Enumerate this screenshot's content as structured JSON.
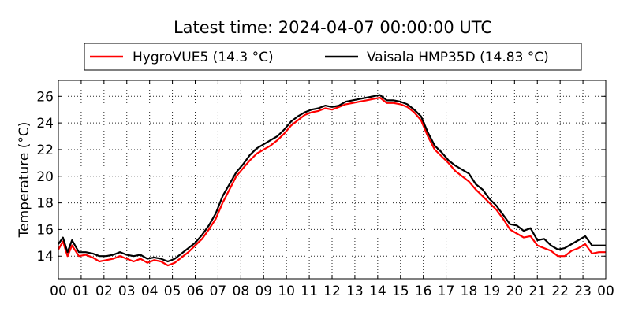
{
  "chart_data": {
    "type": "line",
    "title": "Latest time: 2024-04-07 00:00:00 UTC",
    "xlabel": "",
    "ylabel": "Temperature (°C)",
    "xlim": [
      0,
      24
    ],
    "ylim": [
      12.3,
      27.2
    ],
    "x_tick_labels": [
      "00",
      "01",
      "02",
      "03",
      "04",
      "05",
      "06",
      "07",
      "08",
      "09",
      "10",
      "11",
      "12",
      "13",
      "14",
      "15",
      "16",
      "17",
      "18",
      "19",
      "20",
      "21",
      "22",
      "23",
      "00"
    ],
    "y_ticks": [
      14,
      16,
      18,
      20,
      22,
      24,
      26
    ],
    "grid": true,
    "legend_position": "top",
    "series": [
      {
        "name": "HygroVUE5 (14.3 °C)",
        "color": "#ff0000",
        "x": [
          0.0,
          0.2,
          0.4,
          0.6,
          0.9,
          1.2,
          1.5,
          1.8,
          2.1,
          2.4,
          2.7,
          3.0,
          3.3,
          3.6,
          3.9,
          4.2,
          4.5,
          4.8,
          5.1,
          5.4,
          5.7,
          6.0,
          6.3,
          6.6,
          6.9,
          7.2,
          7.5,
          7.8,
          8.1,
          8.4,
          8.7,
          9.0,
          9.3,
          9.6,
          9.9,
          10.2,
          10.5,
          10.8,
          11.1,
          11.4,
          11.7,
          12.0,
          12.3,
          12.6,
          12.9,
          13.2,
          13.5,
          13.8,
          14.1,
          14.4,
          14.7,
          15.0,
          15.3,
          15.6,
          15.9,
          16.2,
          16.5,
          16.8,
          17.1,
          17.4,
          17.7,
          18.0,
          18.3,
          18.6,
          18.9,
          19.2,
          19.5,
          19.8,
          20.1,
          20.4,
          20.7,
          21.0,
          21.3,
          21.6,
          21.9,
          22.2,
          22.5,
          22.8,
          23.1,
          23.4,
          23.7,
          24.0
        ],
        "values": [
          14.5,
          15.1,
          14.0,
          14.8,
          14.0,
          14.1,
          13.9,
          13.6,
          13.7,
          13.8,
          14.0,
          13.8,
          13.6,
          13.8,
          13.5,
          13.7,
          13.6,
          13.3,
          13.5,
          13.9,
          14.3,
          14.8,
          15.3,
          16.0,
          16.8,
          18.0,
          19.0,
          20.0,
          20.6,
          21.2,
          21.7,
          22.0,
          22.3,
          22.7,
          23.2,
          23.8,
          24.2,
          24.6,
          24.8,
          24.9,
          25.1,
          25.0,
          25.2,
          25.4,
          25.5,
          25.6,
          25.7,
          25.8,
          25.9,
          25.5,
          25.5,
          25.4,
          25.2,
          24.8,
          24.2,
          23.0,
          22.0,
          21.5,
          21.0,
          20.4,
          20.0,
          19.6,
          19.0,
          18.5,
          18.0,
          17.5,
          16.8,
          16.0,
          15.7,
          15.4,
          15.5,
          14.8,
          14.6,
          14.4,
          14.0,
          14.0,
          14.4,
          14.6,
          14.9,
          14.2,
          14.3,
          14.3
        ]
      },
      {
        "name": "Vaisala HMP35D (14.83 °C)",
        "color": "#000000",
        "x": [
          0.0,
          0.2,
          0.4,
          0.6,
          0.9,
          1.2,
          1.5,
          1.8,
          2.1,
          2.4,
          2.7,
          3.0,
          3.3,
          3.6,
          3.9,
          4.2,
          4.5,
          4.8,
          5.1,
          5.4,
          5.7,
          6.0,
          6.3,
          6.6,
          6.9,
          7.2,
          7.5,
          7.8,
          8.1,
          8.4,
          8.7,
          9.0,
          9.3,
          9.6,
          9.9,
          10.2,
          10.5,
          10.8,
          11.1,
          11.4,
          11.7,
          12.0,
          12.3,
          12.6,
          12.9,
          13.2,
          13.5,
          13.8,
          14.1,
          14.4,
          14.7,
          15.0,
          15.3,
          15.6,
          15.9,
          16.2,
          16.5,
          16.8,
          17.1,
          17.4,
          17.7,
          18.0,
          18.3,
          18.6,
          18.9,
          19.2,
          19.5,
          19.8,
          20.1,
          20.4,
          20.7,
          21.0,
          21.3,
          21.6,
          21.9,
          22.2,
          22.5,
          22.8,
          23.1,
          23.4,
          23.7,
          24.0
        ],
        "values": [
          14.9,
          15.4,
          14.3,
          15.2,
          14.3,
          14.3,
          14.2,
          14.0,
          14.0,
          14.1,
          14.3,
          14.1,
          14.0,
          14.1,
          13.8,
          13.9,
          13.8,
          13.6,
          13.8,
          14.2,
          14.6,
          15.0,
          15.6,
          16.3,
          17.2,
          18.5,
          19.4,
          20.3,
          20.9,
          21.6,
          22.1,
          22.4,
          22.7,
          23.0,
          23.5,
          24.1,
          24.5,
          24.8,
          25.0,
          25.1,
          25.3,
          25.2,
          25.3,
          25.6,
          25.7,
          25.8,
          25.9,
          26.0,
          26.1,
          25.7,
          25.7,
          25.6,
          25.4,
          25.0,
          24.5,
          23.3,
          22.3,
          21.8,
          21.2,
          20.8,
          20.5,
          20.2,
          19.4,
          19.0,
          18.3,
          17.8,
          17.1,
          16.4,
          16.3,
          15.9,
          16.1,
          15.2,
          15.3,
          14.8,
          14.5,
          14.6,
          14.9,
          15.2,
          15.5,
          14.8,
          14.8,
          14.8
        ]
      }
    ]
  }
}
